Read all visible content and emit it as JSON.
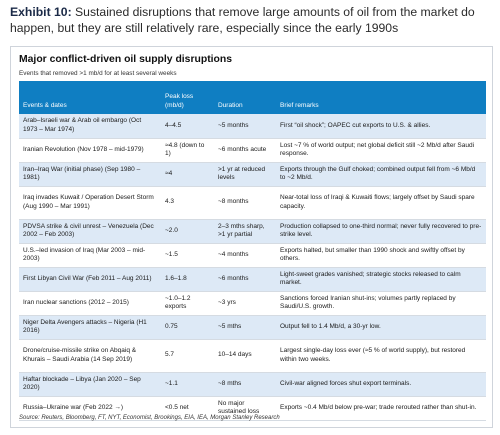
{
  "header": {
    "label": "Exhibit 10:",
    "text": "Sustained disruptions that remove large amounts of oil from the market do happen, but they are still relatively rare, especially since the early 1990s"
  },
  "panel": {
    "title": "Major conflict-driven oil supply disruptions",
    "subtitle": "Events that removed >1 mb/d for at least several weeks"
  },
  "table": {
    "columns": [
      "Events & dates",
      "Peak loss (mb/d)",
      "Duration",
      "Brief remarks"
    ],
    "rows": [
      {
        "event": "Arab–Israeli war & Arab oil embargo (Oct 1973 – Mar 1974)",
        "loss": "4–4.5",
        "duration": "~5 months",
        "remarks": "First “oil shock”; OAPEC cut exports to U.S. & allies."
      },
      {
        "event": "Iranian Revolution (Nov 1978 – mid-1979)",
        "loss": "≈4.8 (down to 1)",
        "duration": "~6 months acute",
        "remarks": "Lost ~7 % of world output; net global deficit still ~2 Mb/d after Saudi response."
      },
      {
        "event": "Iran–Iraq War (initial phase) (Sep 1980 – 1981)",
        "loss": "≈4",
        "duration": ">1 yr at reduced levels",
        "remarks": "Exports through the Gulf choked; combined output fell from ~6 Mb/d to ~2 Mb/d."
      },
      {
        "event": "Iraq invades Kuwait / Operation Desert Storm (Aug 1990 – Mar 1991)",
        "loss": "4.3",
        "duration": "~8 months",
        "remarks": "Near-total loss of Iraqi & Kuwaiti flows; largely offset by Saudi spare capacity."
      },
      {
        "event": "PDVSA strike & civil unrest – Venezuela (Dec 2002 – Feb 2003)",
        "loss": "~2.0",
        "duration": "2–3 mths sharp, >1 yr partial",
        "remarks": "Production collapsed to one-third normal; never fully recovered to pre-strike level."
      },
      {
        "event": "U.S.–led invasion of Iraq (Mar 2003 – mid-2003)",
        "loss": "~1.5",
        "duration": "~4 months",
        "remarks": "Exports halted, but smaller than 1990 shock and swiftly offset by others."
      },
      {
        "event": "First Libyan Civil War (Feb 2011 – Aug 2011)",
        "loss": "1.6–1.8",
        "duration": "~6 months",
        "remarks": "Light-sweet grades vanished; strategic stocks released to calm market."
      },
      {
        "event": "Iran nuclear sanctions (2012 – 2015)",
        "loss": "~1.0–1.2 exports",
        "duration": "~3 yrs",
        "remarks": "Sanctions forced Iranian shut-ins; volumes partly replaced by Saudi/U.S. growth."
      },
      {
        "event": "Niger Delta Avengers attacks – Nigeria (H1 2016)",
        "loss": "0.75",
        "duration": "~5 mths",
        "remarks": "Output fell to 1.4 Mb/d, a 30-yr low."
      },
      {
        "event": "Drone/cruise-missile strike on Abqaiq & Khurais – Saudi Arabia (14 Sep 2019)",
        "loss": "5.7",
        "duration": "10–14 days",
        "remarks": "Largest single-day loss ever (≈5 % of world supply), but restored within two weeks."
      },
      {
        "event": "Haftar blockade – Libya (Jan 2020 – Sep 2020)",
        "loss": "~1.1",
        "duration": "~8 mths",
        "remarks": "Civil-war aligned forces shut export terminals."
      },
      {
        "event": "Russia–Ukraine war (Feb 2022 →)",
        "loss": "<0.5 net",
        "duration": "No major sustained loss",
        "remarks": "Exports ~0.4 Mb/d below pre-war; trade rerouted rather than shut-in."
      }
    ]
  },
  "source": "Source: Reuters, Bloomberg, FT, NYT, Economist, Brookings, EIA, IEA, Morgan Stanley Research"
}
